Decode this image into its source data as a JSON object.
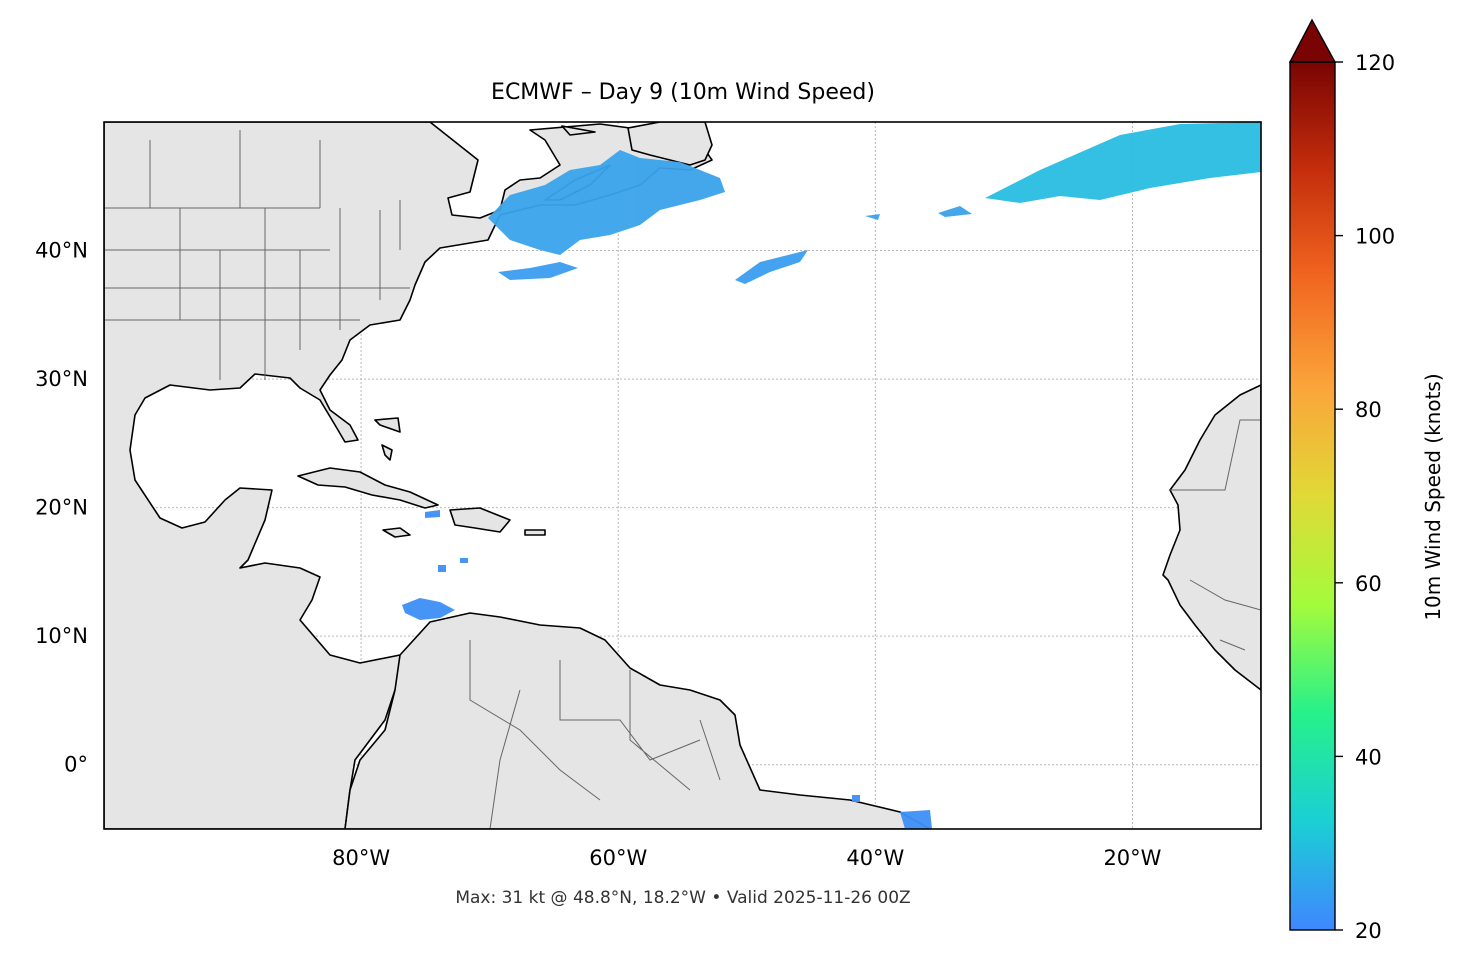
{
  "title": "ECMWF – Day 9 (10m Wind Speed)",
  "footer": "Max: 31 kt @ 48.8°N, 18.2°W • Valid 2025-11-26 00Z",
  "map": {
    "lon_range": [
      -100,
      -10
    ],
    "lat_range": [
      -5,
      50
    ],
    "lon_ticks": [
      {
        "value": -80,
        "label": "80°W"
      },
      {
        "value": -60,
        "label": "60°W"
      },
      {
        "value": -40,
        "label": "40°W"
      },
      {
        "value": -20,
        "label": "20°W"
      }
    ],
    "lat_ticks": [
      {
        "value": 40,
        "label": "40°N"
      },
      {
        "value": 30,
        "label": "30°N"
      },
      {
        "value": 20,
        "label": "20°N"
      },
      {
        "value": 10,
        "label": "10°N"
      },
      {
        "value": 0,
        "label": "0°"
      }
    ],
    "gridlines": true,
    "land_color": "#e5e5e5",
    "ocean_color": "#ffffff"
  },
  "colorbar": {
    "label": "10m Wind Speed (knots)",
    "range": [
      20,
      120
    ],
    "extend": "max",
    "ticks": [
      {
        "value": 20,
        "label": "20"
      },
      {
        "value": 40,
        "label": "40"
      },
      {
        "value": 60,
        "label": "60"
      },
      {
        "value": 80,
        "label": "80"
      },
      {
        "value": 100,
        "label": "100"
      },
      {
        "value": 120,
        "label": "120"
      }
    ],
    "colors": [
      "#3f87ff",
      "#1bcfd5",
      "#26f18a",
      "#a4fb3c",
      "#e0d936",
      "#fba53a",
      "#f16720",
      "#c52e0c",
      "#7a0403"
    ]
  },
  "max_wind": {
    "speed_kt": 31,
    "lat": 48.8,
    "lon": -18.2
  },
  "wind_areas": [
    {
      "name": "north-atlantic-band",
      "speed_kt": 28
    },
    {
      "name": "northeast-us-coastal",
      "speed_kt": 24
    },
    {
      "name": "central-atlantic-streak",
      "speed_kt": 23
    },
    {
      "name": "caribbean-patch",
      "speed_kt": 22
    },
    {
      "name": "brazil-coast-patch",
      "speed_kt": 21
    }
  ]
}
